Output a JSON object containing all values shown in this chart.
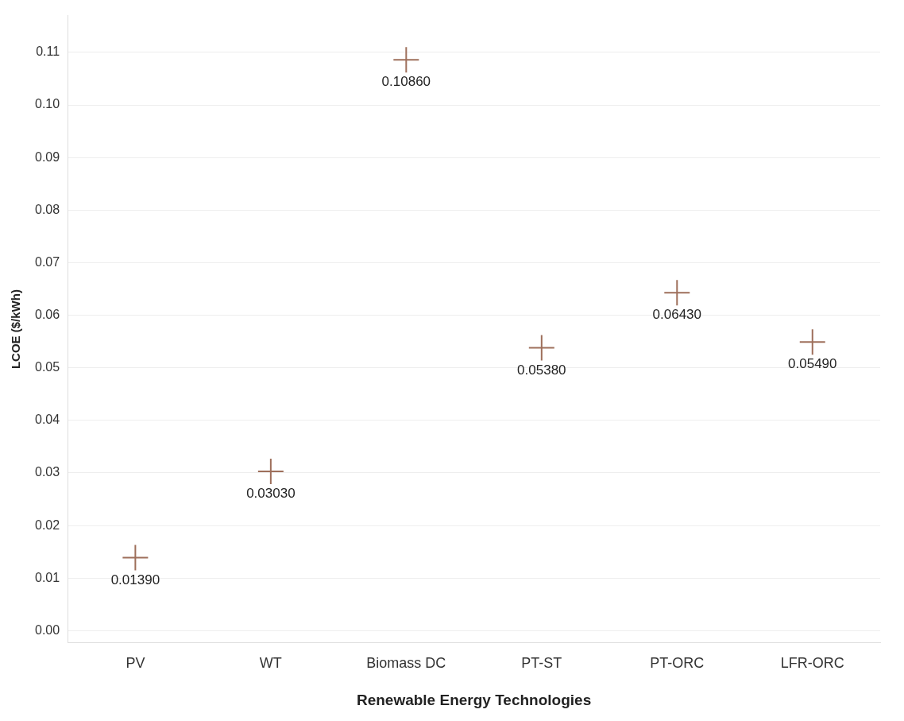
{
  "chart_data": {
    "type": "scatter",
    "xlabel": "Renewable Energy Technologies",
    "ylabel": "LCOE ($/kWh)",
    "categories": [
      "PV",
      "WT",
      "Biomass DC",
      "PT-ST",
      "PT-ORC",
      "LFR-ORC"
    ],
    "values": [
      0.0139,
      0.0303,
      0.1086,
      0.0538,
      0.0643,
      0.0549
    ],
    "value_labels": [
      "0.01390",
      "0.03030",
      "0.10860",
      "0.05380",
      "0.06430",
      "0.05490"
    ],
    "color": "#9e6f5b",
    "marker": "cross",
    "ylim": [
      -0.0023,
      0.117
    ],
    "yticks": [
      {
        "value": 0,
        "label": "0.00"
      },
      {
        "value": 0.01,
        "label": "0.01"
      },
      {
        "value": 0.02,
        "label": "0.02"
      },
      {
        "value": 0.03,
        "label": "0.03"
      },
      {
        "value": 0.04,
        "label": "0.04"
      },
      {
        "value": 0.05,
        "label": "0.05"
      },
      {
        "value": 0.06,
        "label": "0.06"
      },
      {
        "value": 0.07,
        "label": "0.07"
      },
      {
        "value": 0.08,
        "label": "0.08"
      },
      {
        "value": 0.09,
        "label": "0.09"
      },
      {
        "value": 0.1,
        "label": "0.10"
      },
      {
        "value": 0.11,
        "label": "0.11"
      }
    ],
    "grid": "y",
    "legend": false
  }
}
